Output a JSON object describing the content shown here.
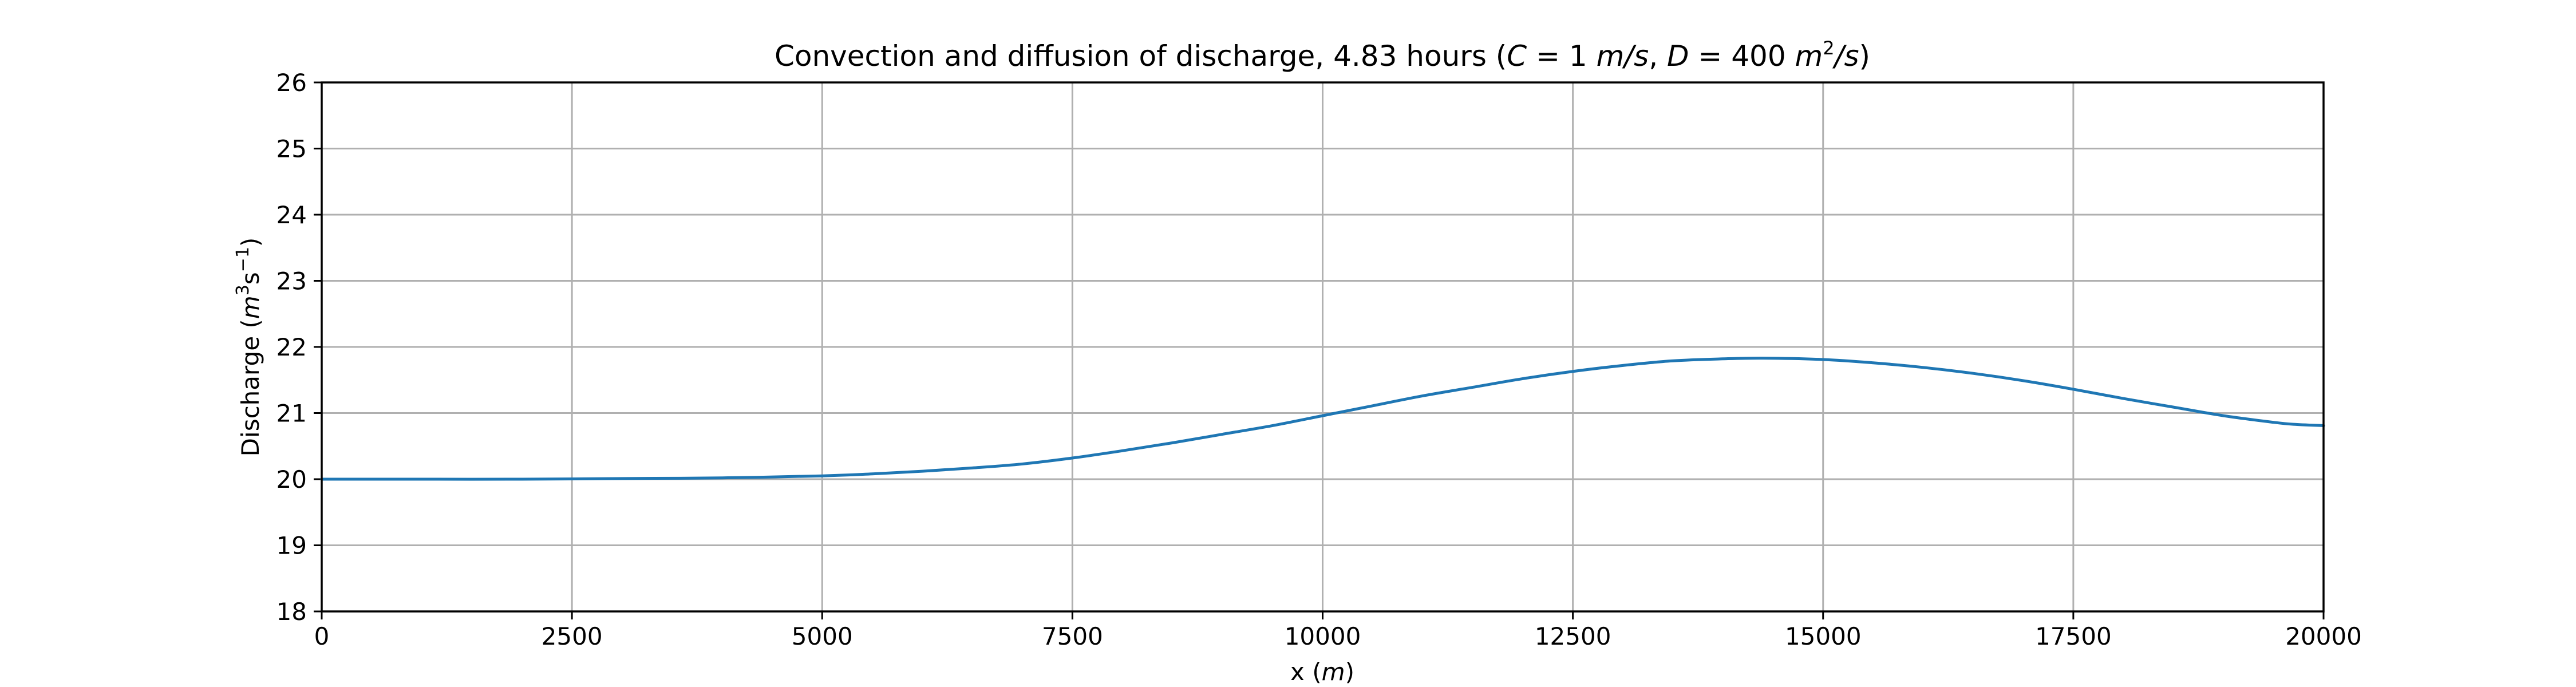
{
  "chart_data": {
    "type": "line",
    "title": "Convection and diffusion of discharge, 4.83 hours",
    "title_math": {
      "open": " (",
      "c_var": "C",
      "c_eq": " = 1 ",
      "c_unit": "m/s",
      "sep": ", ",
      "d_var": "D",
      "d_eq": " = 400 ",
      "d_unit": "m",
      "d_sup": "2",
      "d_unit_tail": "/s",
      "close": ")"
    },
    "xlabel": {
      "text": "x (",
      "unit": "m",
      "close": ")"
    },
    "ylabel": {
      "text": "Discharge (",
      "unit_m": "m",
      "sup3": "3",
      "unit_s": "s",
      "sup_neg1": "−1",
      "close": ")"
    },
    "xlim": [
      0,
      20000
    ],
    "ylim": [
      18,
      26
    ],
    "xticks": [
      0,
      2500,
      5000,
      7500,
      10000,
      12500,
      15000,
      17500,
      20000
    ],
    "yticks": [
      18,
      19,
      20,
      21,
      22,
      23,
      24,
      25,
      26
    ],
    "grid": true,
    "line_color": "#1f77b4",
    "series": [
      {
        "x": [
          0,
          1000,
          2000,
          3000,
          4000,
          5000,
          5500,
          6000,
          6500,
          7000,
          7500,
          8000,
          8500,
          9000,
          9500,
          10000,
          10500,
          11000,
          11500,
          12000,
          12500,
          13000,
          13500,
          14000,
          14400,
          15000,
          15500,
          16000,
          16500,
          17000,
          17500,
          18000,
          18500,
          19000,
          19500,
          19700,
          20000
        ],
        "y": [
          20.0,
          20.0,
          20.0,
          20.01,
          20.02,
          20.05,
          20.08,
          20.12,
          20.17,
          20.23,
          20.32,
          20.43,
          20.55,
          20.68,
          20.81,
          20.96,
          21.11,
          21.26,
          21.39,
          21.52,
          21.63,
          21.72,
          21.79,
          21.82,
          21.83,
          21.81,
          21.76,
          21.69,
          21.6,
          21.49,
          21.36,
          21.22,
          21.09,
          20.96,
          20.86,
          20.83,
          20.81
        ]
      }
    ]
  }
}
